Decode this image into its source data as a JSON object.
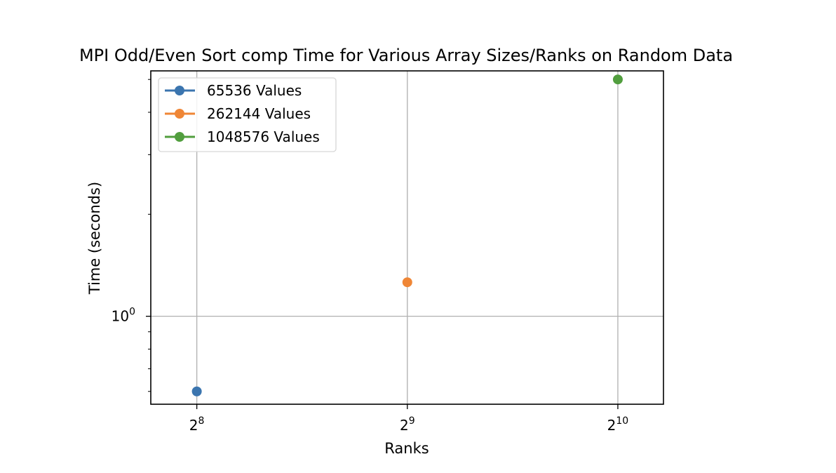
{
  "chart_data": {
    "type": "scatter",
    "title": "MPI Odd/Even Sort comp Time for Various Array Sizes/Ranks on Random Data",
    "xlabel": "Ranks",
    "ylabel": "Time (seconds)",
    "x_scale": "log2",
    "y_scale": "log10",
    "xlim": [
      220,
      1190
    ],
    "ylim": [
      0.55,
      5.3
    ],
    "x_ticks": [
      {
        "value": 256,
        "base": "2",
        "exp": "8"
      },
      {
        "value": 512,
        "base": "2",
        "exp": "9"
      },
      {
        "value": 1024,
        "base": "2",
        "exp": "10"
      }
    ],
    "y_ticks": [
      {
        "value": 1,
        "base": "10",
        "exp": "0"
      }
    ],
    "grid": true,
    "legend_position": "top-left",
    "series": [
      {
        "name": "65536 Values",
        "color": "#3b75af",
        "points": [
          {
            "x": 256,
            "y": 0.6
          }
        ]
      },
      {
        "name": "262144 Values",
        "color": "#ef8636",
        "points": [
          {
            "x": 512,
            "y": 1.26
          }
        ]
      },
      {
        "name": "1048576 Values",
        "color": "#519e3e",
        "points": [
          {
            "x": 1024,
            "y": 5.0
          }
        ]
      }
    ]
  }
}
